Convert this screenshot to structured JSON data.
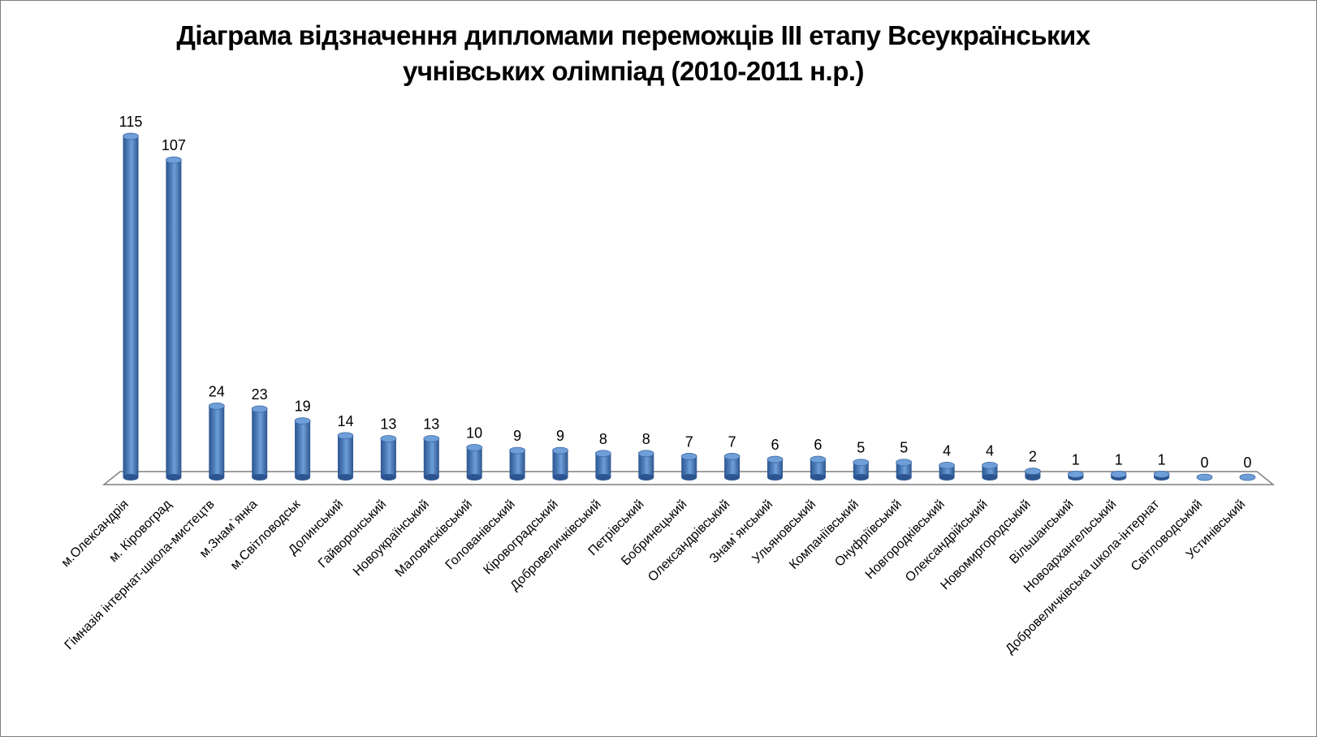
{
  "chart_data": {
    "type": "bar",
    "title": "Діаграма відзначення дипломами переможців ІІІ етапу Всеукраїнських учнівських олімпіад (2010-2011 н.р.)",
    "xlabel": "",
    "ylabel": "",
    "ylim": [
      0,
      115
    ],
    "grid": false,
    "legend": "none",
    "bar_color": "#4f81bd",
    "categories": [
      "м.Олександрія",
      "м. Кіровоград",
      "Гімназія інтернат-школа-мистецтв",
      "м.Знам`янка",
      "м.Світловодськ",
      "Долинський",
      "Гайворонський",
      "Новоукраїнський",
      "Маловисківський",
      "Голованівський",
      "Кіровоградський",
      "Добровеличківський",
      "Петрівський",
      "Бобринецький",
      "Олександрівський",
      "Знам`янський",
      "Ульяновський",
      "Компаніївський",
      "Онуфріївський",
      "Новгородківський",
      "Олександрійський",
      "Новомиргородський",
      "Вільшанський",
      "Новоархангельський",
      "Добровеличківська школа-інтернат",
      "Світловодський",
      "Устинівський"
    ],
    "values": [
      115,
      107,
      24,
      23,
      19,
      14,
      13,
      13,
      10,
      9,
      9,
      8,
      8,
      7,
      7,
      6,
      6,
      5,
      5,
      4,
      4,
      2,
      1,
      1,
      1,
      0,
      0
    ]
  }
}
